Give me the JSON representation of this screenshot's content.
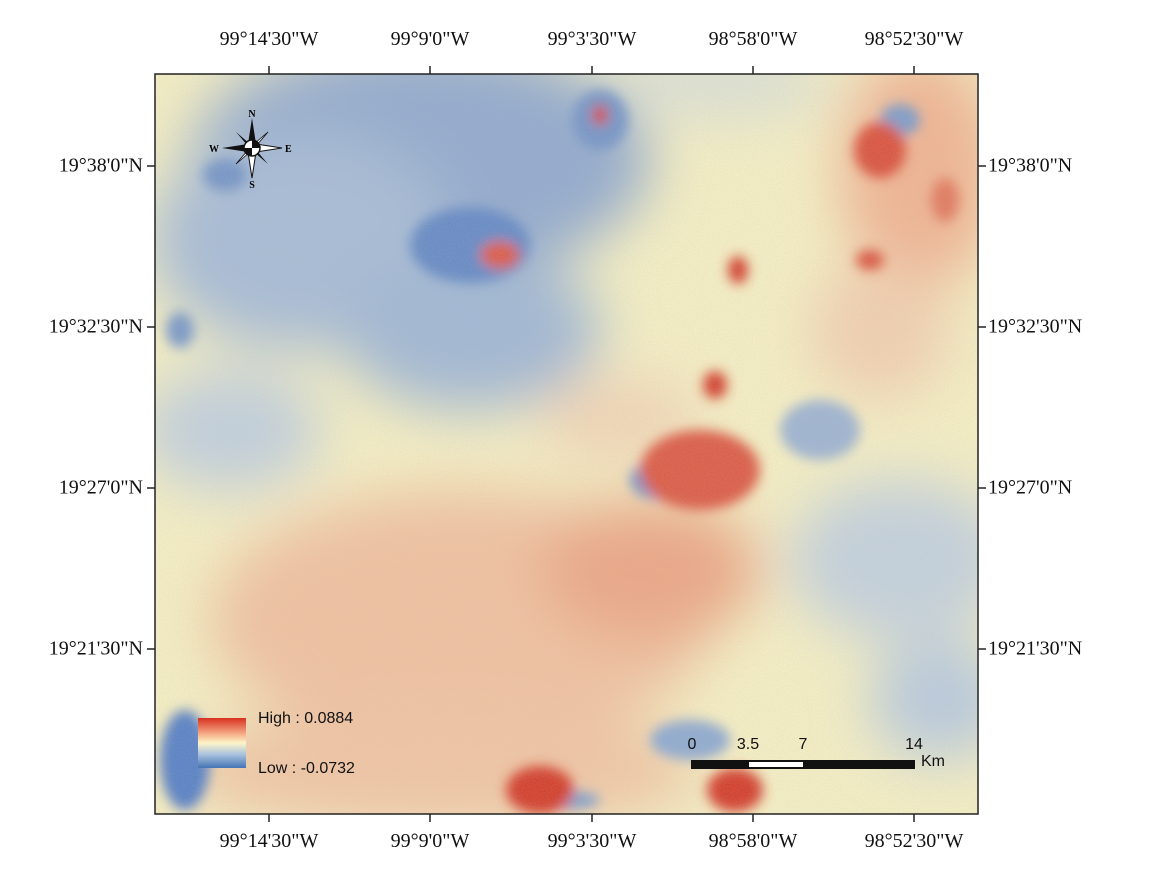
{
  "map": {
    "top_lon_labels": [
      "99°14'30\"W",
      "99°9'0\"W",
      "99°3'30\"W",
      "98°58'0\"W",
      "98°52'30\"W"
    ],
    "bottom_lon_labels": [
      "99°14'30\"W",
      "99°9'0\"W",
      "99°3'30\"W",
      "98°58'0\"W",
      "98°52'30\"W"
    ],
    "left_lat_labels": [
      "19°38'0\"N",
      "19°32'30\"N",
      "19°27'0\"N",
      "19°21'30\"N"
    ],
    "right_lat_labels": [
      "19°38'0\"N",
      "19°32'30\"N",
      "19°27'0\"N",
      "19°21'30\"N"
    ]
  },
  "legend": {
    "high_label": "High : 0.0884",
    "low_label": "Low : -0.0732",
    "high_value": 0.0884,
    "low_value": -0.0732,
    "ramp_colors": [
      "#d7301f",
      "#f4a582",
      "#fdf5c8",
      "#abc4de",
      "#4575b4"
    ]
  },
  "scale_bar": {
    "labels": [
      "0",
      "3.5",
      "7",
      "14"
    ],
    "unit": "Km"
  },
  "north_arrow": {
    "icon": "compass-rose-icon",
    "n": "N",
    "s": "S",
    "e": "E",
    "w": "W"
  },
  "palette": {
    "red": "#d7301f",
    "orange": "#f3a07e",
    "yellow": "#fbf4c4",
    "blue": "#6d8fc4",
    "deep_blue": "#3f6fc2"
  }
}
